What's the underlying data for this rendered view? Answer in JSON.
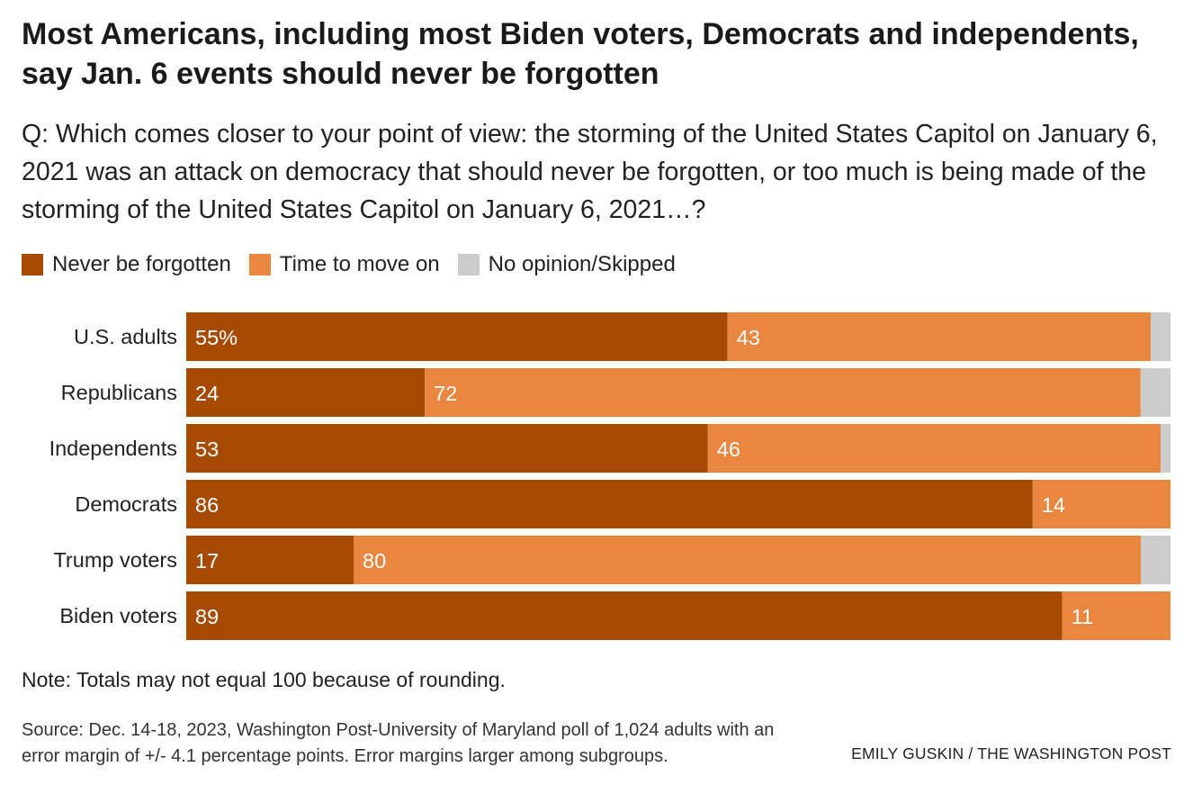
{
  "title": "Most Americans, including most Biden voters, Democrats and independents, say Jan. 6 events should never be forgotten",
  "subtitle": "Q: Which comes closer to your point of view: the storming of the United States Capitol on January 6, 2021 was an attack on democracy that should never be forgotten, or too much is being made of the storming of the United States Capitol on January 6, 2021…?",
  "legend": [
    {
      "label": "Never be forgotten",
      "color": "#a64a00"
    },
    {
      "label": "Time to move on",
      "color": "#e98640"
    },
    {
      "label": "No opinion/Skipped",
      "color": "#cccccc"
    }
  ],
  "chart_data": {
    "type": "bar",
    "orientation": "horizontal",
    "stacked": true,
    "categories": [
      "U.S. adults",
      "Republicans",
      "Independents",
      "Democrats",
      "Trump voters",
      "Biden voters"
    ],
    "series": [
      {
        "name": "Never be forgotten",
        "color": "#a64a00",
        "values": [
          55,
          24,
          53,
          86,
          17,
          89
        ],
        "labels": [
          "55%",
          "24",
          "53",
          "86",
          "17",
          "89"
        ]
      },
      {
        "name": "Time to move on",
        "color": "#e98640",
        "values": [
          43,
          72,
          46,
          14,
          80,
          11
        ],
        "labels": [
          "43",
          "72",
          "46",
          "14",
          "80",
          "11"
        ]
      },
      {
        "name": "No opinion/Skipped",
        "color": "#cccccc",
        "values": [
          2,
          3,
          1,
          0,
          3,
          0
        ]
      }
    ],
    "xlim": [
      0,
      100
    ],
    "grid": false,
    "legend_position": "top-left"
  },
  "note": "Note: Totals may not equal 100 because of rounding.",
  "source": "Source: Dec. 14-18, 2023, Washington Post-University of Maryland poll of 1,024 adults with an error margin of +/- 4.1 percentage points. Error margins larger among subgroups.",
  "credit": "EMILY GUSKIN / THE WASHINGTON POST"
}
